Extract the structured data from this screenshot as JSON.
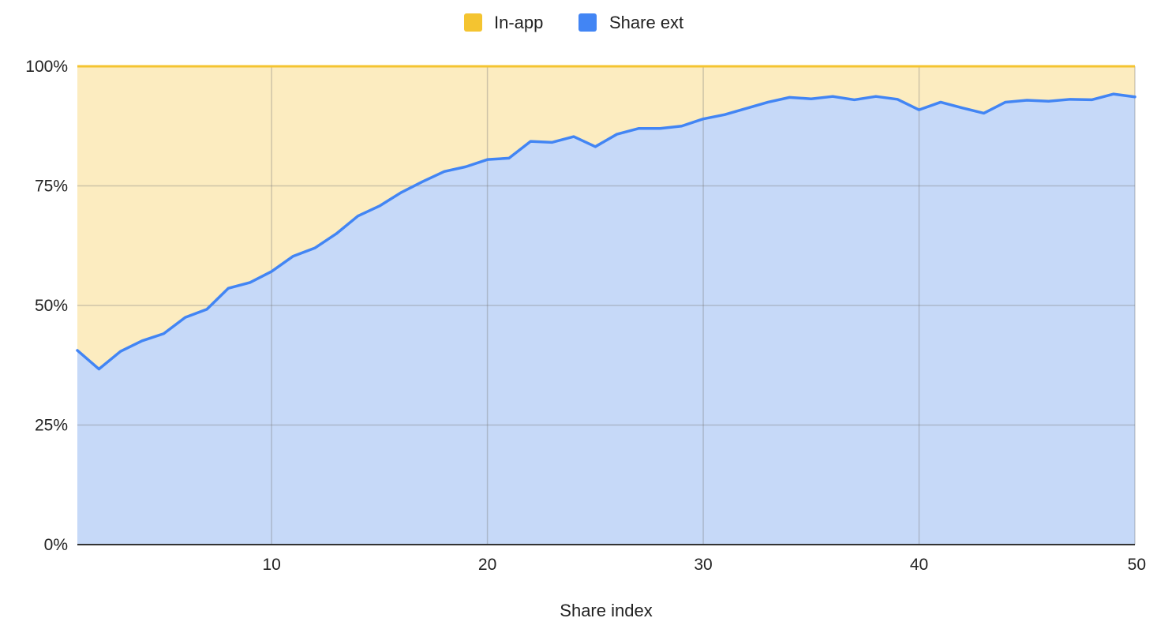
{
  "chart_data": {
    "type": "area",
    "stacked": "percent",
    "title": "",
    "xlabel": "Share index",
    "ylabel": "",
    "xlim": [
      1,
      50
    ],
    "ylim": [
      0,
      100
    ],
    "x_ticks": [
      10,
      20,
      30,
      40,
      50
    ],
    "y_ticks": [
      0,
      25,
      50,
      75,
      100
    ],
    "y_tick_labels": [
      "0%",
      "25%",
      "50%",
      "75%",
      "100%"
    ],
    "legend_position": "top-center",
    "grid": true,
    "x": [
      1,
      2,
      3,
      4,
      5,
      6,
      7,
      8,
      9,
      10,
      11,
      12,
      13,
      14,
      15,
      16,
      17,
      18,
      19,
      20,
      21,
      22,
      23,
      24,
      25,
      26,
      27,
      28,
      29,
      30,
      31,
      32,
      33,
      34,
      35,
      36,
      37,
      38,
      39,
      40,
      41,
      42,
      43,
      44,
      45,
      46,
      47,
      48,
      49,
      50
    ],
    "series": [
      {
        "name": "Share ext",
        "color": "#4285f4",
        "fill": "#c6d9f8",
        "values": [
          40.6,
          36.7,
          40.4,
          42.6,
          44.1,
          47.5,
          49.2,
          53.6,
          54.8,
          57.1,
          60.3,
          62.0,
          65.0,
          68.7,
          70.8,
          73.6,
          75.9,
          78.0,
          79.0,
          80.5,
          80.8,
          84.3,
          84.1,
          85.3,
          83.2,
          85.8,
          87.0,
          87.0,
          87.5,
          89.0,
          89.9,
          91.2,
          92.5,
          93.5,
          93.2,
          93.7,
          93.0,
          93.7,
          93.1,
          90.9,
          92.5,
          91.3,
          90.2,
          92.5,
          92.9,
          92.7,
          93.1,
          93.0,
          94.2,
          93.6
        ]
      },
      {
        "name": "In-app",
        "color": "#f4c430",
        "fill": "#fcecc0",
        "values": [
          59.4,
          63.3,
          59.6,
          57.4,
          55.9,
          52.5,
          50.8,
          46.4,
          45.2,
          42.9,
          39.7,
          38.0,
          35.0,
          31.3,
          29.2,
          26.4,
          24.1,
          22.0,
          21.0,
          19.5,
          19.2,
          15.7,
          15.9,
          14.7,
          16.8,
          14.2,
          13.0,
          13.0,
          12.5,
          11.0,
          10.1,
          8.8,
          7.5,
          6.5,
          6.8,
          6.3,
          7.0,
          6.3,
          6.9,
          9.1,
          7.5,
          8.7,
          9.8,
          7.5,
          7.1,
          7.3,
          6.9,
          7.0,
          5.8,
          6.4
        ]
      }
    ],
    "legend": [
      {
        "name": "In-app",
        "color": "#f4c430"
      },
      {
        "name": "Share ext",
        "color": "#4285f4"
      }
    ]
  }
}
